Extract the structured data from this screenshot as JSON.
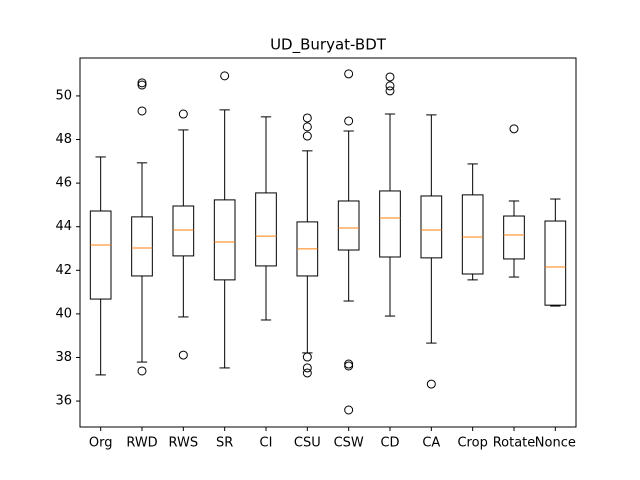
{
  "chart_data": {
    "type": "boxplot",
    "title": "UD_Buryat-BDT",
    "categories": [
      "Org",
      "RWD",
      "RWS",
      "SR",
      "CI",
      "CSU",
      "CSW",
      "CD",
      "CA",
      "Crop",
      "Rotate",
      "Nonce"
    ],
    "box_color": "#000000",
    "median_color": "#ff7f0e",
    "boxes": [
      {
        "whislo": 37.2,
        "q1": 40.68,
        "med": 43.16,
        "q3": 44.72,
        "whishi": 47.2,
        "fliers": []
      },
      {
        "whislo": 37.79,
        "q1": 41.74,
        "med": 43.02,
        "q3": 44.45,
        "whishi": 46.93,
        "fliers": [
          37.38,
          49.31,
          50.5,
          50.6
        ]
      },
      {
        "whislo": 39.86,
        "q1": 42.66,
        "med": 43.85,
        "q3": 44.95,
        "whishi": 48.44,
        "fliers": [
          38.11,
          49.17
        ]
      },
      {
        "whislo": 37.52,
        "q1": 41.56,
        "med": 43.3,
        "q3": 45.23,
        "whishi": 49.36,
        "fliers": [
          50.92
        ]
      },
      {
        "whislo": 39.72,
        "q1": 42.2,
        "med": 43.57,
        "q3": 45.55,
        "whishi": 49.04,
        "fliers": []
      },
      {
        "whislo": 38.21,
        "q1": 41.74,
        "med": 42.98,
        "q3": 44.22,
        "whishi": 47.48,
        "fliers": [
          38.02,
          37.52,
          37.29,
          48.99,
          48.58,
          48.16
        ]
      },
      {
        "whislo": 40.59,
        "q1": 42.93,
        "med": 43.94,
        "q3": 45.18,
        "whishi": 48.39,
        "fliers": [
          51.01,
          48.85,
          37.7,
          37.61,
          35.59
        ]
      },
      {
        "whislo": 39.9,
        "q1": 42.61,
        "med": 44.4,
        "q3": 45.64,
        "whishi": 49.17,
        "fliers": [
          50.87,
          50.46,
          50.23
        ]
      },
      {
        "whislo": 38.66,
        "q1": 42.57,
        "med": 43.85,
        "q3": 45.41,
        "whishi": 49.13,
        "fliers": [
          36.78
        ]
      },
      {
        "whislo": 41.56,
        "q1": 41.83,
        "med": 43.53,
        "q3": 45.46,
        "whishi": 46.88,
        "fliers": []
      },
      {
        "whislo": 41.69,
        "q1": 42.52,
        "med": 43.62,
        "q3": 44.49,
        "whishi": 45.18,
        "fliers": [
          48.49
        ]
      },
      {
        "whislo": 40.36,
        "q1": 40.4,
        "med": 42.15,
        "q3": 44.26,
        "whishi": 45.27,
        "fliers": []
      }
    ],
    "ylim": [
      34.81,
      51.74
    ],
    "yticks": [
      36,
      38,
      40,
      42,
      44,
      46,
      48,
      50
    ]
  }
}
